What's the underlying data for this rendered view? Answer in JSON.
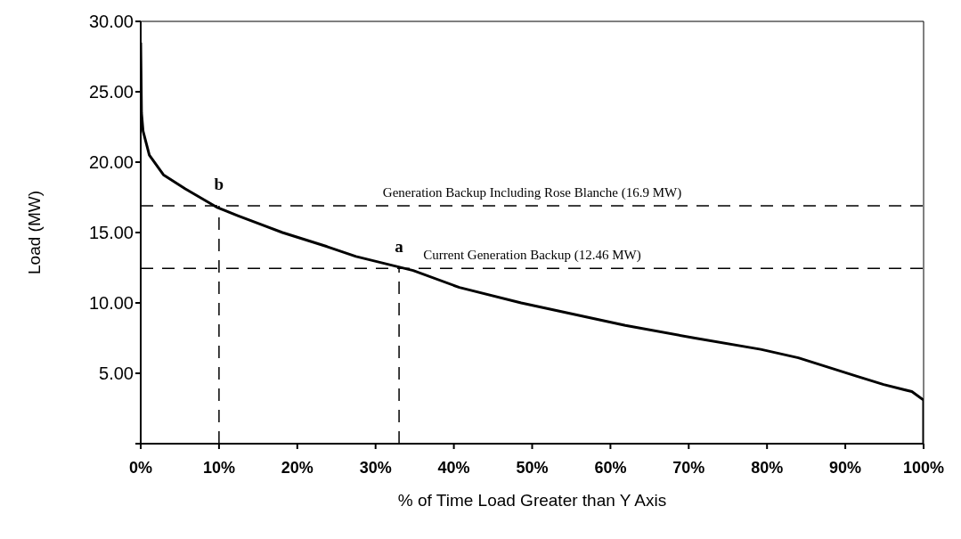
{
  "chart_data": {
    "type": "line",
    "xlabel": "% of Time Load Greater than Y Axis",
    "ylabel": "Load (MW)",
    "xlim": [
      0,
      100
    ],
    "xticks": [
      {
        "value": 0,
        "label": "0%"
      },
      {
        "value": 10,
        "label": "10%"
      },
      {
        "value": 20,
        "label": "20%"
      },
      {
        "value": 30,
        "label": "30%"
      },
      {
        "value": 40,
        "label": "40%"
      },
      {
        "value": 50,
        "label": "50%"
      },
      {
        "value": 60,
        "label": "60%"
      },
      {
        "value": 70,
        "label": "70%"
      },
      {
        "value": 80,
        "label": "80%"
      },
      {
        "value": 90,
        "label": "90%"
      },
      {
        "value": 100,
        "label": "100%"
      }
    ],
    "ylim": [
      0,
      30
    ],
    "yticks": [
      {
        "value": 0,
        "label": null
      },
      {
        "value": 5,
        "label": "5.00"
      },
      {
        "value": 10,
        "label": "10.00"
      },
      {
        "value": 15,
        "label": "15.00"
      },
      {
        "value": 20,
        "label": "20.00"
      },
      {
        "value": 25,
        "label": "25.00"
      },
      {
        "value": 30,
        "label": "30.00"
      }
    ],
    "marker": "none",
    "series": [
      {
        "color": "#000000",
        "line_style": "solid",
        "x": [
          0,
          0.1,
          0.3,
          1.1,
          2.9,
          5.7,
          9.7,
          12.4,
          18.1,
          23.8,
          27.5,
          34.8,
          40.7,
          48.6,
          61.9,
          70.8,
          79.2,
          84.0,
          91.4,
          94.9,
          98.5,
          100,
          100
        ],
        "values": [
          28.5,
          23.5,
          22.2,
          20.5,
          19.1,
          18.1,
          16.8,
          16.2,
          15.0,
          14.0,
          13.3,
          12.3,
          11.1,
          10.0,
          8.4,
          7.5,
          6.7,
          6.1,
          4.8,
          4.2,
          3.7,
          3.1,
          0
        ]
      },
      {
        "color": "#000000",
        "line_style": "dashed",
        "x": [
          10,
          10
        ],
        "values": [
          0,
          16.9
        ]
      },
      {
        "color": "#000000",
        "line_style": "dashed",
        "x": [
          33,
          33
        ],
        "values": [
          0,
          12.46
        ]
      }
    ],
    "ref_lines": [
      {
        "axis": "y",
        "value": 16.9,
        "label": "Generation Backup Including Rose Blanche (16.9 MW)",
        "line_style": "dashed",
        "color": "#000000"
      },
      {
        "axis": "y",
        "value": 12.46,
        "label": "Current Generation Backup (12.46 MW)",
        "line_style": "dashed",
        "color": "#000000"
      }
    ],
    "annotations": [
      {
        "text": "b",
        "x": 10,
        "y": 16.9
      },
      {
        "text": "a",
        "x": 33,
        "y": 12.46
      }
    ]
  }
}
